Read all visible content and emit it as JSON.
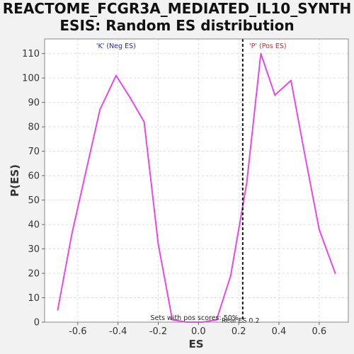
{
  "chart_data": {
    "type": "line",
    "title_line1": "REACTOME_FCGR3A_MEDIATED_IL10_SYNTH",
    "title_line2": "ESIS: Random ES distribution",
    "xlabel": "ES",
    "ylabel": "P(ES)",
    "xlim": [
      -0.765,
      0.745
    ],
    "ylim": [
      0,
      116
    ],
    "xticks": [
      -0.6,
      -0.4,
      -0.2,
      0.0,
      0.2,
      0.4,
      0.6
    ],
    "xtick_labels": [
      "-0.6",
      "-0.4",
      "-0.2",
      "0.0",
      "0.2",
      "0.4",
      "0.6"
    ],
    "yticks": [
      0,
      10,
      20,
      30,
      40,
      50,
      60,
      70,
      80,
      90,
      100,
      110
    ],
    "ytick_labels": [
      "0",
      "10",
      "20",
      "30",
      "40",
      "50",
      "60",
      "70",
      "80",
      "90",
      "100",
      "110"
    ],
    "grid": true,
    "series": [
      {
        "color": "#ee44ee",
        "x": [
          -0.7,
          -0.63,
          -0.49,
          -0.41,
          -0.34,
          -0.27,
          -0.2,
          -0.13,
          -0.06,
          0.02,
          0.09,
          0.16,
          0.24,
          0.31,
          0.38,
          0.46,
          0.53,
          0.6,
          0.68
        ],
        "y": [
          5,
          36,
          87,
          101,
          92,
          82,
          32,
          1,
          0,
          0,
          1,
          19,
          57,
          110,
          93,
          99,
          68,
          38,
          20
        ]
      }
    ],
    "real_es": 0.22,
    "annotations": {
      "neg_label": "'K' (Neg ES)",
      "neg_color": "#2222cc",
      "pos_label": "'P' (Pos ES)",
      "pos_color": "#dd2222",
      "sets_text": "Sets with pos scores: 50%",
      "real_es_text": "Real ES 0.2"
    }
  }
}
